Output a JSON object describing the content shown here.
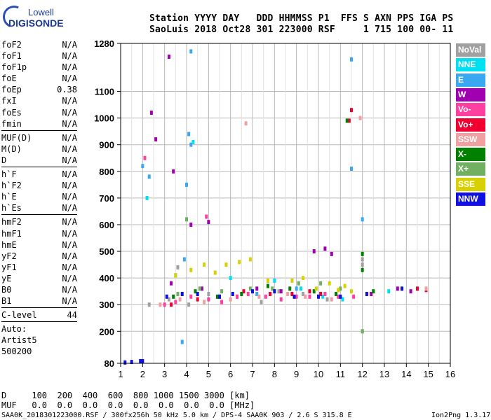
{
  "logo": {
    "line1": "Lowell",
    "line2": "DIGISONDE"
  },
  "header": {
    "line1": "Station YYYY DAY   DDD HHMMSS P1  FFS S AXN PPS IGA PS",
    "line2": "SaoLuis 2018 Oct28 301 223000 RSF     1 715 100 00- 11"
  },
  "params_group1": [
    {
      "name": "foF2",
      "value": "N/A"
    },
    {
      "name": "foF1",
      "value": "N/A"
    },
    {
      "name": "foF1p",
      "value": "N/A"
    },
    {
      "name": "foE",
      "value": "N/A"
    },
    {
      "name": "foEp",
      "value": "0.38"
    },
    {
      "name": "fxI",
      "value": "N/A"
    },
    {
      "name": "foEs",
      "value": "N/A"
    },
    {
      "name": "fmin",
      "value": "N/A"
    }
  ],
  "params_group2": [
    {
      "name": "MUF(D)",
      "value": "N/A"
    },
    {
      "name": "M(D)",
      "value": "N/A"
    },
    {
      "name": "D",
      "value": "N/A"
    }
  ],
  "params_group3": [
    {
      "name": "h`F",
      "value": "N/A"
    },
    {
      "name": "h`F2",
      "value": "N/A"
    },
    {
      "name": "h`E",
      "value": "N/A"
    },
    {
      "name": "h`Es",
      "value": "N/A"
    }
  ],
  "params_group4": [
    {
      "name": "hmF2",
      "value": "N/A"
    },
    {
      "name": "hmF1",
      "value": "N/A"
    },
    {
      "name": "hmE",
      "value": "N/A"
    },
    {
      "name": "yF2",
      "value": "N/A"
    },
    {
      "name": "yF1",
      "value": "N/A"
    },
    {
      "name": "yE",
      "value": "N/A"
    },
    {
      "name": "B0",
      "value": "N/A"
    },
    {
      "name": "B1",
      "value": "N/A"
    }
  ],
  "clevel": {
    "name": "C-level",
    "value": "44"
  },
  "auto": {
    "l1": "Auto:",
    "l2": "Artist5",
    "l3": "500200"
  },
  "bottom": {
    "d_line": "D     100  200  400  600  800 1000 1500 3000 [km]",
    "muf_line": "MUF   0.0  0.0  0.0  0.0  0.0  0.0  0.0  0.0 [MHz]"
  },
  "footer": {
    "left": "SAA0K_2018301223000.RSF / 300fx256h 50 kHz 5.0 km / DPS-4 SAA0K 903 / 2.6 S 315.8 E",
    "right": "Ion2Png 1.3.17"
  },
  "legend": [
    {
      "label": "NoVal",
      "color": "#a0a0a0"
    },
    {
      "label": "NNE",
      "color": "#00e0f0"
    },
    {
      "label": "E",
      "color": "#3aa8f0"
    },
    {
      "label": "W",
      "color": "#a000b0"
    },
    {
      "label": "Vo-",
      "color": "#ff40a0"
    },
    {
      "label": "Vo+",
      "color": "#f00030"
    },
    {
      "label": "SSW",
      "color": "#f0a0a0"
    },
    {
      "label": "X-",
      "color": "#008000"
    },
    {
      "label": "X+",
      "color": "#70b060"
    },
    {
      "label": "SSE",
      "color": "#d8d000"
    },
    {
      "label": "NNW",
      "color": "#1010e0"
    }
  ],
  "chart_data": {
    "type": "scatter",
    "title": "",
    "xlabel": "",
    "ylabel": "",
    "xlim": [
      1,
      16
    ],
    "ylim": [
      80,
      1280
    ],
    "x_ticks": [
      1,
      2,
      3,
      4,
      5,
      6,
      7,
      8,
      9,
      10,
      11,
      12,
      13,
      14,
      15,
      16
    ],
    "y_ticks": [
      80,
      200,
      300,
      400,
      500,
      600,
      700,
      800,
      900,
      1000,
      1100,
      1280
    ],
    "grid": true,
    "legend_position": "right",
    "series": [
      {
        "name": "NoVal",
        "color": "#a0a0a0",
        "points": [
          [
            2.3,
            300
          ],
          [
            3.2,
            320
          ],
          [
            4.1,
            300
          ],
          [
            5.0,
            340
          ],
          [
            6.3,
            330
          ],
          [
            7.4,
            310
          ],
          [
            8.2,
            350
          ],
          [
            9.3,
            340
          ],
          [
            10.4,
            320
          ],
          [
            12.0,
            470
          ],
          [
            12.0,
            450
          ],
          [
            12.0,
            200
          ],
          [
            3.6,
            440
          ]
        ]
      },
      {
        "name": "NNE",
        "color": "#00e0f0",
        "points": [
          [
            2.2,
            700
          ],
          [
            4.3,
            910
          ],
          [
            8.0,
            390
          ],
          [
            9.2,
            360
          ],
          [
            10.2,
            330
          ],
          [
            11.1,
            320
          ],
          [
            6.0,
            400
          ],
          [
            3.5,
            410
          ],
          [
            13.2,
            350
          ]
        ]
      },
      {
        "name": "E",
        "color": "#3aa8f0",
        "points": [
          [
            2.0,
            820
          ],
          [
            4.1,
            940
          ],
          [
            4.0,
            750
          ],
          [
            4.2,
            900
          ],
          [
            3.9,
            470
          ],
          [
            3.8,
            160
          ],
          [
            2.3,
            780
          ],
          [
            11.5,
            1220
          ],
          [
            11.5,
            810
          ],
          [
            12.0,
            620
          ],
          [
            4.2,
            1250
          ],
          [
            9.0,
            360
          ],
          [
            7.2,
            340
          ]
        ]
      },
      {
        "name": "W",
        "color": "#a000b0",
        "points": [
          [
            3.2,
            1230
          ],
          [
            2.6,
            920
          ],
          [
            2.4,
            1020
          ],
          [
            3.4,
            800
          ],
          [
            4.2,
            600
          ],
          [
            5.0,
            610
          ],
          [
            3.3,
            380
          ],
          [
            4.7,
            360
          ],
          [
            7.2,
            360
          ],
          [
            9.8,
            500
          ],
          [
            10.3,
            510
          ],
          [
            10.6,
            490
          ],
          [
            8.3,
            350
          ],
          [
            13.6,
            360
          ],
          [
            14.2,
            350
          ],
          [
            12.4,
            340
          ]
        ]
      },
      {
        "name": "Vo-",
        "color": "#ff40a0",
        "points": [
          [
            3.0,
            300
          ],
          [
            3.5,
            310
          ],
          [
            4.2,
            330
          ],
          [
            5.0,
            320
          ],
          [
            5.6,
            310
          ],
          [
            6.3,
            330
          ],
          [
            6.8,
            340
          ],
          [
            7.6,
            330
          ],
          [
            8.3,
            320
          ],
          [
            9.0,
            330
          ],
          [
            9.6,
            330
          ],
          [
            10.3,
            340
          ],
          [
            10.9,
            330
          ],
          [
            11.6,
            330
          ],
          [
            4.9,
            630
          ],
          [
            2.1,
            850
          ]
        ]
      },
      {
        "name": "Vo+",
        "color": "#f00030",
        "points": [
          [
            3.3,
            300
          ],
          [
            4.5,
            320
          ],
          [
            5.5,
            330
          ],
          [
            6.6,
            350
          ],
          [
            7.8,
            340
          ],
          [
            8.8,
            340
          ],
          [
            9.6,
            350
          ],
          [
            11.5,
            1030
          ],
          [
            11.4,
            990
          ],
          [
            14.5,
            360
          ],
          [
            14.9,
            355
          ],
          [
            10.1,
            340
          ]
        ]
      },
      {
        "name": "SSW",
        "color": "#f0a0a0",
        "points": [
          [
            2.8,
            300
          ],
          [
            3.7,
            320
          ],
          [
            4.8,
            310
          ],
          [
            6.0,
            320
          ],
          [
            7.3,
            330
          ],
          [
            8.6,
            340
          ],
          [
            9.4,
            330
          ],
          [
            10.6,
            320
          ],
          [
            11.9,
            1000
          ],
          [
            6.7,
            980
          ],
          [
            14.9,
            360
          ]
        ]
      },
      {
        "name": "X-",
        "color": "#008000",
        "points": [
          [
            3.4,
            330
          ],
          [
            4.4,
            350
          ],
          [
            5.4,
            330
          ],
          [
            6.5,
            340
          ],
          [
            7.7,
            370
          ],
          [
            8.7,
            360
          ],
          [
            9.8,
            350
          ],
          [
            11.3,
            990
          ],
          [
            12.0,
            490
          ],
          [
            12.0,
            430
          ],
          [
            10.8,
            340
          ],
          [
            12.5,
            350
          ]
        ]
      },
      {
        "name": "X+",
        "color": "#70b060",
        "points": [
          [
            3.6,
            340
          ],
          [
            4.6,
            360
          ],
          [
            5.6,
            350
          ],
          [
            6.9,
            360
          ],
          [
            7.9,
            360
          ],
          [
            9.1,
            380
          ],
          [
            10.1,
            380
          ],
          [
            11.0,
            360
          ],
          [
            12.0,
            200
          ],
          [
            4.0,
            620
          ]
        ]
      },
      {
        "name": "SSE",
        "color": "#d8d000",
        "points": [
          [
            3.5,
            410
          ],
          [
            4.2,
            430
          ],
          [
            4.8,
            450
          ],
          [
            5.3,
            420
          ],
          [
            5.8,
            450
          ],
          [
            6.4,
            460
          ],
          [
            6.9,
            470
          ],
          [
            7.7,
            390
          ],
          [
            8.8,
            390
          ],
          [
            9.3,
            400
          ],
          [
            10.5,
            380
          ],
          [
            11.2,
            370
          ],
          [
            11.5,
            350
          ],
          [
            10.9,
            355
          ],
          [
            9.9,
            360
          ]
        ]
      },
      {
        "name": "NNW",
        "color": "#1010e0",
        "points": [
          [
            1.2,
            83
          ],
          [
            1.5,
            85
          ],
          [
            1.9,
            88
          ],
          [
            2.0,
            88
          ],
          [
            3.1,
            330
          ],
          [
            3.8,
            340
          ],
          [
            4.5,
            340
          ],
          [
            5.5,
            330
          ],
          [
            6.1,
            340
          ],
          [
            7.0,
            350
          ],
          [
            8.0,
            350
          ],
          [
            8.9,
            330
          ],
          [
            10.0,
            330
          ],
          [
            11.0,
            330
          ],
          [
            13.8,
            360
          ],
          [
            12.2,
            340
          ]
        ]
      }
    ]
  }
}
